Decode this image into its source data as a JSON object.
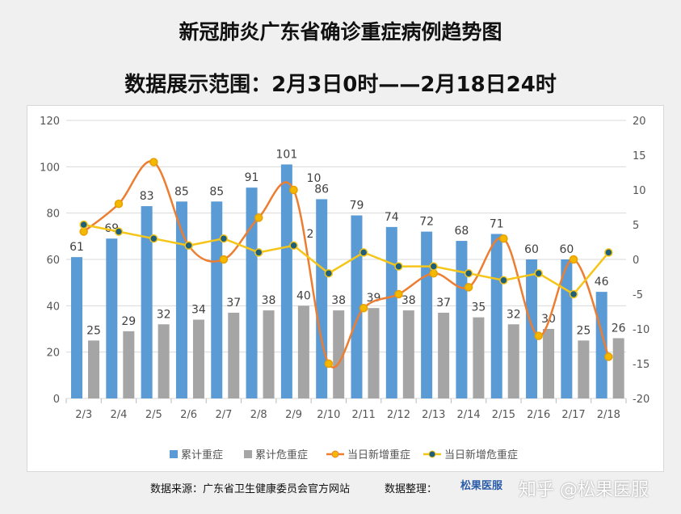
{
  "title": "新冠肺炎广东省确诊重症病例趋势图",
  "subtitle": "数据展示范围：2月3日0时——2月18日24时",
  "footer": {
    "source": "数据来源：广东省卫生健康委员会官方网站",
    "compiled": "数据整理：",
    "logo": "松果医服",
    "watermark": "知乎 @松果医服"
  },
  "chart_data": {
    "type": "bar+line",
    "categories": [
      "2/3",
      "2/4",
      "2/5",
      "2/6",
      "2/7",
      "2/8",
      "2/9",
      "2/10",
      "2/11",
      "2/12",
      "2/13",
      "2/14",
      "2/15",
      "2/16",
      "2/17",
      "2/18"
    ],
    "y_left": {
      "range": [
        0,
        120
      ],
      "ticks": [
        0,
        20,
        40,
        60,
        80,
        100,
        120
      ]
    },
    "y_right": {
      "range": [
        -20,
        20
      ],
      "ticks": [
        -20,
        -15,
        -10,
        -5,
        0,
        5,
        10,
        15,
        20
      ]
    },
    "grid": true,
    "legend": "bottom",
    "series": [
      {
        "name": "累计重症",
        "type": "bar",
        "axis": "left",
        "color": "#5b9bd5",
        "values": [
          61,
          69,
          83,
          85,
          85,
          91,
          101,
          86,
          79,
          74,
          72,
          68,
          71,
          60,
          60,
          46
        ]
      },
      {
        "name": "累计危重症",
        "type": "bar",
        "axis": "left",
        "color": "#a5a5a5",
        "values": [
          25,
          29,
          32,
          34,
          37,
          38,
          40,
          38,
          39,
          38,
          37,
          35,
          32,
          30,
          25,
          26
        ]
      },
      {
        "name": "当日新增重症",
        "type": "line",
        "axis": "right",
        "color": "#ed7d31",
        "values": [
          4,
          8,
          14,
          2,
          0,
          6,
          10,
          -15,
          -7,
          -5,
          -2,
          -4,
          3,
          -11,
          0,
          -14
        ],
        "labels": {
          "6": "10"
        }
      },
      {
        "name": "当日新增危重症",
        "type": "line",
        "axis": "right",
        "color": "#f5c518",
        "values": [
          5,
          4,
          3,
          2,
          3,
          1,
          2,
          -2,
          1,
          -1,
          -1,
          -2,
          -3,
          -2,
          -5,
          1
        ],
        "labels": {
          "6": "2"
        }
      }
    ]
  }
}
